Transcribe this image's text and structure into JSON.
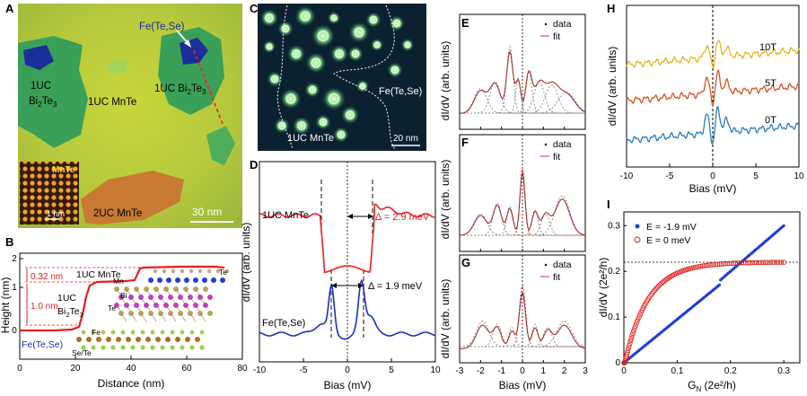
{
  "panel_a": {
    "label": "A",
    "fe_label": "Fe(Te,Se)",
    "left_bi_top": "1UC",
    "left_bi_name": "Bi",
    "left_bi_sub1": "2",
    "left_bi_mid": "Te",
    "left_bi_sub2": "3",
    "mnte_label": "1UC MnTe",
    "right_bi_prefix": "1UC Bi",
    "right_bi_sub1": "2",
    "right_bi_mid": "Te",
    "right_bi_sub2": "3",
    "inset_label": "MnTe",
    "inset_scale": "1 nm",
    "mnte2_label": "2UC MnTe",
    "scale_bar": "30 nm"
  },
  "panel_b": {
    "label": "B",
    "ylabel": "Height (nm)",
    "xlabel": "Distance (nm)",
    "xticks": [
      "0",
      "20",
      "40",
      "60",
      "80"
    ],
    "yticks": [
      "0",
      "1",
      "2"
    ],
    "step_top": "0.32 nm",
    "step_mid": "1.0 nm",
    "mnte_label": "1UC MnTe",
    "bi_label_top": "1UC",
    "bi_label_name": "Bi",
    "bi_sub1": "2",
    "bi_mid": "Te",
    "bi_sub2": "3",
    "fe_label": "Fe(Te,Se)",
    "atom_mn": "Mn",
    "atom_te": "Te",
    "atom_bi": "Bi",
    "atom_te2": "Te",
    "atom_fe": "Fe",
    "atom_sete": "Se/Te"
  },
  "panel_c": {
    "label": "C",
    "fe_label": "Fe(Te,Se)",
    "mnte_label": "1UC MnTe",
    "scale_bar": "20 nm"
  },
  "panel_d": {
    "label": "D",
    "ylabel": "dI/dV (arb. units)",
    "xlabel": "Bias (mV)",
    "xticks": [
      "-10",
      "-5",
      "0",
      "5",
      "10"
    ],
    "curve_top_label": "1UC MnTe",
    "curve_bottom_label": "Fe(Te,Se)",
    "gap_top": "Δ = 2.9 meV",
    "gap_bottom": "Δ = 1.9 meV",
    "colors": {
      "top": "#e8221f",
      "bottom": "#1a2ecb"
    }
  },
  "panel_efg": {
    "labels": [
      "E",
      "F",
      "G"
    ],
    "ylabel": "dI/dV (arb. units)",
    "xlabel": "Bias (mV)",
    "xticks": [
      "-3",
      "-2",
      "-1",
      "0",
      "1",
      "2",
      "3"
    ],
    "legend_data": "data",
    "legend_fit": "fit"
  },
  "panel_h": {
    "label": "H",
    "ylabel": "dI/dV (arb. units)",
    "xlabel": "Bias (mV)",
    "xticks": [
      "-10",
      "-5",
      "0",
      "5",
      "10"
    ],
    "series": [
      {
        "name": "10T",
        "color": "#e8b321"
      },
      {
        "name": "5T",
        "color": "#d9541e"
      },
      {
        "name": "0T",
        "color": "#2b7bbf"
      }
    ]
  },
  "panel_i": {
    "label": "I",
    "ylabel": "dI/dV (2e²/h)",
    "xlabel_main": "G",
    "xlabel_sub": "N",
    "xlabel_rest": " (2e²/h)",
    "xticks": [
      "0",
      "0.1",
      "0.2",
      "0.3"
    ],
    "yticks": [
      "0",
      "0.1",
      "0.2",
      "0.3"
    ],
    "legend": [
      {
        "name": "E = -1.9 mV",
        "color": "#1f3fd6",
        "marker": "filled"
      },
      {
        "name": "E = 0 meV",
        "color": "#e0201a",
        "marker": "open"
      }
    ],
    "dashed_level": 0.22
  }
}
